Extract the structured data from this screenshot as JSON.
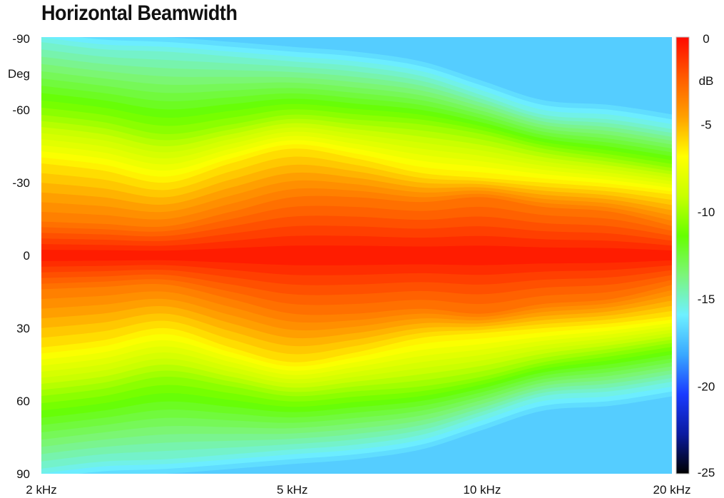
{
  "chart_data": {
    "type": "heatmap",
    "title": "Horizontal Beamwidth",
    "xlabel": "",
    "ylabel": "Deg",
    "x_scale": "log",
    "x_range_hz": [
      2000,
      20000
    ],
    "x_ticks": [
      {
        "value": 2000,
        "label": "2 kHz"
      },
      {
        "value": 5000,
        "label": "5 kHz"
      },
      {
        "value": 10000,
        "label": "10 kHz"
      },
      {
        "value": 20000,
        "label": "20 kHz"
      }
    ],
    "y_range_deg": [
      -90,
      90
    ],
    "y_ticks": [
      {
        "value": -90,
        "label": "-90"
      },
      {
        "value": -60,
        "label": "-60"
      },
      {
        "value": -30,
        "label": "-30"
      },
      {
        "value": 0,
        "label": "0"
      },
      {
        "value": 30,
        "label": "30"
      },
      {
        "value": 60,
        "label": "60"
      },
      {
        "value": 90,
        "label": "90"
      }
    ],
    "colorbar": {
      "label": "dB",
      "range": [
        -25,
        0
      ],
      "ticks": [
        {
          "value": 0,
          "label": "0"
        },
        {
          "value": -5,
          "label": "-5"
        },
        {
          "value": -10,
          "label": "-10"
        },
        {
          "value": -15,
          "label": "-15"
        },
        {
          "value": -20,
          "label": "-20"
        },
        {
          "value": -25,
          "label": "-25"
        }
      ],
      "colors": [
        "#000000",
        "#0a1aa0",
        "#1a3aff",
        "#3aa8ff",
        "#6ef0ff",
        "#7cf57a",
        "#66ff00",
        "#c8ff00",
        "#ffff00",
        "#ffa000",
        "#ff5a00",
        "#ff0a00"
      ]
    },
    "grid": false,
    "frequencies_hz": [
      2000,
      2500,
      3150,
      4000,
      5000,
      6300,
      8000,
      10000,
      12500,
      16000,
      20000
    ],
    "contours": {
      "description": "off-axis angle (deg) where the level falls to the given dB, per frequency",
      "levels": [
        {
          "db": -3,
          "angles_deg": [
            14,
            13,
            12,
            18,
            24,
            24,
            22,
            24,
            20,
            18,
            12
          ]
        },
        {
          "db": -6,
          "angles_deg": [
            38,
            35,
            30,
            38,
            44,
            40,
            34,
            32,
            30,
            28,
            25
          ]
        },
        {
          "db": -10,
          "angles_deg": [
            58,
            55,
            50,
            54,
            58,
            56,
            54,
            50,
            44,
            40,
            36
          ]
        },
        {
          "db": -15,
          "angles_deg": [
            88,
            85,
            84,
            82,
            80,
            78,
            74,
            66,
            58,
            56,
            52
          ]
        }
      ]
    }
  }
}
